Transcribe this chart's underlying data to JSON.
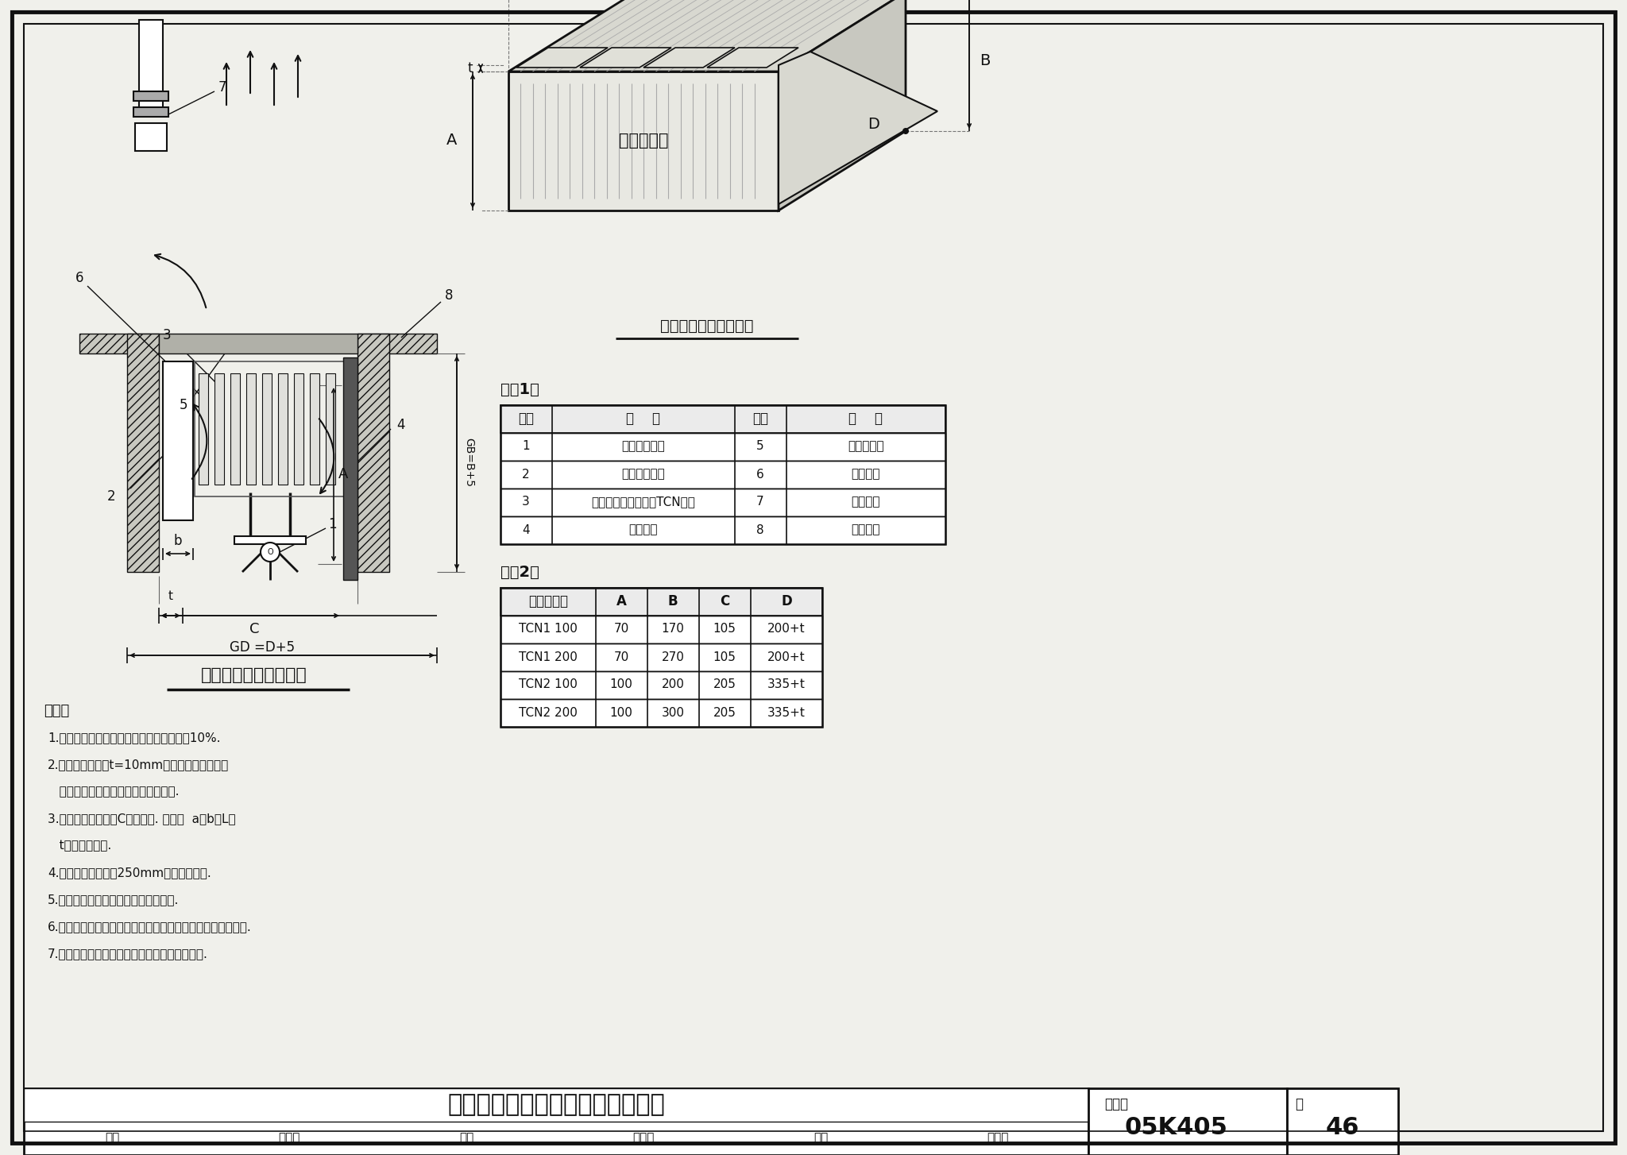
{
  "title_main": "全铜水道对流散热器地面嵌入安装",
  "title_sub": "图集号",
  "title_code": "05K405",
  "page_label": "页",
  "page_num": "46",
  "drawing_title_left": "散热器地面下嵌入安装",
  "drawing_title_right": "散热器安装空间示意图",
  "notes_title": "说明：",
  "notes": [
    "1.此种安装形式散热器的有效散热量将折减10%.",
    "2.挡板可选用厚度t=10mm的木板等类似材料，",
    "   格栅应可拆卸，嵌入空间应便于清扫.",
    "3.散热器应当安装在C空间居中. 图示中  a、b、L、",
    "   t值由设计确定.",
    "4.散热器接管端应有250mm以上操作间距.",
    "5.散热器连续安装时需考虑热膨胀影响.",
    "6.散热器的固定方式可在成品落地支架或挂墙托架中任选其一.",
    "7.散热器的温控阀阀头应设远传型或远传设定型."
  ],
  "table1_title": "附表1：",
  "table1_headers": [
    "件号",
    "名    称",
    "件号",
    "名    称"
  ],
  "table1_rows": [
    [
      "1",
      "成品落地支架",
      "5",
      "加密铁丝网"
    ],
    [
      "2",
      "成品挂墙托架",
      "6",
      "地面隔槽"
    ],
    [
      "3",
      "全铜水道对流散热器TCN系列",
      "7",
      "玻璃幕墙"
    ],
    [
      "4",
      "隔热挡板",
      "8",
      "建筑面层"
    ]
  ],
  "table2_title": "附表2：",
  "table2_headers": [
    "散热器型号",
    "A",
    "B",
    "C",
    "D"
  ],
  "table2_rows": [
    [
      "TCN1 100",
      "70",
      "170",
      "105",
      "200+t"
    ],
    [
      "TCN1 200",
      "70",
      "270",
      "105",
      "200+t"
    ],
    [
      "TCN2 100",
      "100",
      "200",
      "205",
      "335+t"
    ],
    [
      "TCN2 200",
      "100",
      "300",
      "205",
      "335+t"
    ]
  ],
  "bottom_labels": [
    "审核",
    "孙淑萍",
    "校对",
    "劳逸民",
    "设计",
    "胡建丽"
  ],
  "bg_color": "#f0f0eb",
  "line_color": "#111111"
}
